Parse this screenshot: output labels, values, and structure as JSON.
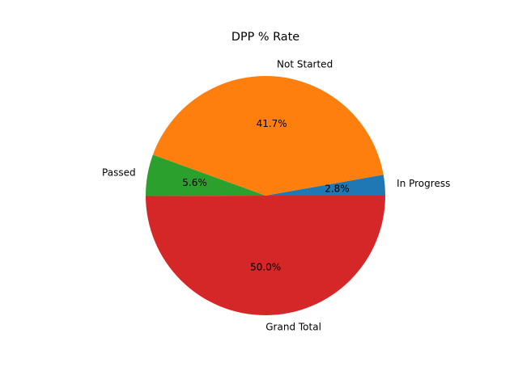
{
  "chart_data": {
    "type": "pie",
    "title": "DPP % Rate",
    "start_angle_deg": 0,
    "direction": "counterclockwise",
    "slices": [
      {
        "label": "In Progress",
        "value": 2.8,
        "pct_label": "2.8%",
        "color": "#1f77b4"
      },
      {
        "label": "Not Started",
        "value": 41.7,
        "pct_label": "41.7%",
        "color": "#ff7f0e"
      },
      {
        "label": "Passed",
        "value": 5.6,
        "pct_label": "5.6%",
        "color": "#2ca02c"
      },
      {
        "label": "Grand Total",
        "value": 50.0,
        "pct_label": "50.0%",
        "color": "#d62728"
      }
    ]
  }
}
